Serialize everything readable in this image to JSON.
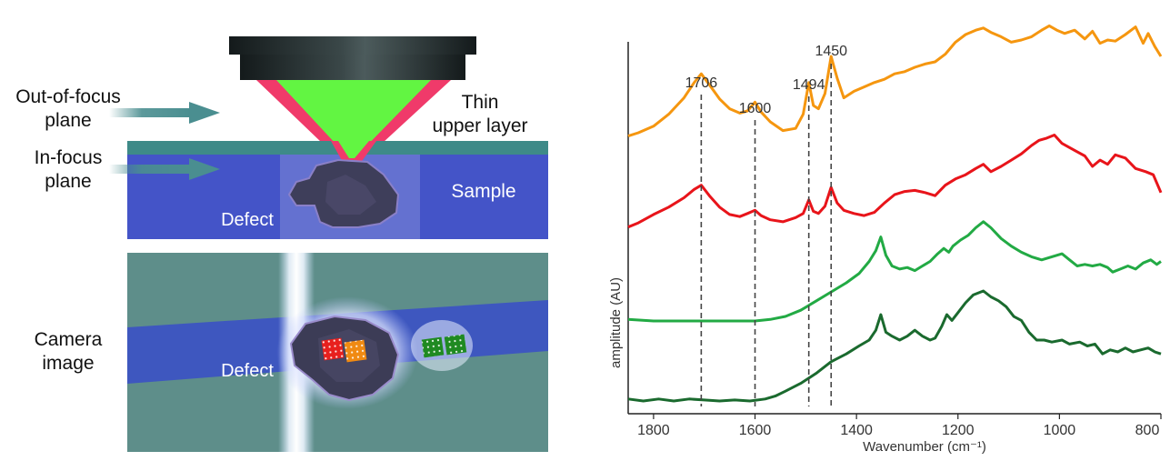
{
  "diagram": {
    "labels": {
      "out_of_focus_line1": "Out-of-focus",
      "out_of_focus_line2": "plane",
      "in_focus_line1": "In-focus",
      "in_focus_line2": "plane",
      "thin_layer_line1": "Thin",
      "thin_layer_line2": "upper layer",
      "sample": "Sample",
      "defect_top": "Defect",
      "camera_line1": "Camera",
      "camera_line2": "image",
      "defect_bottom": "Defect"
    },
    "colors": {
      "sample_blue": "#4454c8",
      "upper_layer_teal": "#3e8a88",
      "arrow_teal": "#4a8e90",
      "beam_green": "#62f542",
      "beam_red": "#f03a6a",
      "camera_bg": "#5e8e8a",
      "objective_dark": "#1e2526"
    },
    "markers": [
      {
        "name": "red-marker",
        "color": "#e8201e"
      },
      {
        "name": "orange-marker",
        "color": "#f08a12"
      },
      {
        "name": "green-marker-1",
        "color": "#1f8a22"
      },
      {
        "name": "green-marker-2",
        "color": "#1f8a22"
      }
    ]
  },
  "chart_data": {
    "type": "line",
    "title": "",
    "xlabel": "Wavenumber (cm⁻¹)",
    "ylabel": "amplitude (AU)",
    "xlim": [
      1850,
      800
    ],
    "x_reversed": true,
    "xticks": [
      1800,
      1600,
      1400,
      1200,
      1000,
      800
    ],
    "grid": false,
    "legend": "none",
    "peaks": [
      {
        "x": 1706,
        "label": "1706"
      },
      {
        "x": 1600,
        "label": "1600"
      },
      {
        "x": 1494,
        "label": "1494"
      },
      {
        "x": 1450,
        "label": "1450"
      }
    ],
    "series": [
      {
        "color": "#f5960f",
        "points": [
          [
            1850,
            0.27
          ],
          [
            1830,
            0.3
          ],
          [
            1800,
            0.36
          ],
          [
            1770,
            0.47
          ],
          [
            1740,
            0.62
          ],
          [
            1720,
            0.76
          ],
          [
            1706,
            0.84
          ],
          [
            1690,
            0.74
          ],
          [
            1670,
            0.61
          ],
          [
            1650,
            0.52
          ],
          [
            1630,
            0.48
          ],
          [
            1615,
            0.5
          ],
          [
            1600,
            0.58
          ],
          [
            1588,
            0.49
          ],
          [
            1570,
            0.4
          ],
          [
            1545,
            0.32
          ],
          [
            1520,
            0.34
          ],
          [
            1505,
            0.47
          ],
          [
            1494,
            0.76
          ],
          [
            1485,
            0.55
          ],
          [
            1475,
            0.52
          ],
          [
            1462,
            0.66
          ],
          [
            1450,
            1.0
          ],
          [
            1438,
            0.8
          ],
          [
            1425,
            0.62
          ],
          [
            1405,
            0.68
          ],
          [
            1385,
            0.72
          ],
          [
            1365,
            0.76
          ],
          [
            1345,
            0.79
          ],
          [
            1325,
            0.84
          ],
          [
            1305,
            0.86
          ],
          [
            1285,
            0.9
          ],
          [
            1265,
            0.93
          ],
          [
            1245,
            0.95
          ],
          [
            1225,
            1.02
          ],
          [
            1205,
            1.13
          ],
          [
            1185,
            1.2
          ],
          [
            1165,
            1.24
          ],
          [
            1150,
            1.26
          ],
          [
            1135,
            1.22
          ],
          [
            1115,
            1.18
          ],
          [
            1095,
            1.13
          ],
          [
            1075,
            1.15
          ],
          [
            1055,
            1.18
          ],
          [
            1035,
            1.24
          ],
          [
            1020,
            1.28
          ],
          [
            1005,
            1.24
          ],
          [
            990,
            1.21
          ],
          [
            970,
            1.24
          ],
          [
            950,
            1.16
          ],
          [
            935,
            1.23
          ],
          [
            920,
            1.12
          ],
          [
            905,
            1.15
          ],
          [
            890,
            1.14
          ],
          [
            870,
            1.2
          ],
          [
            850,
            1.27
          ],
          [
            835,
            1.12
          ],
          [
            825,
            1.21
          ],
          [
            812,
            1.09
          ],
          [
            800,
            1.0
          ]
        ]
      },
      {
        "color": "#e8141a",
        "points": [
          [
            1850,
            0.22
          ],
          [
            1830,
            0.26
          ],
          [
            1800,
            0.34
          ],
          [
            1770,
            0.41
          ],
          [
            1740,
            0.5
          ],
          [
            1720,
            0.58
          ],
          [
            1706,
            0.62
          ],
          [
            1690,
            0.52
          ],
          [
            1670,
            0.41
          ],
          [
            1650,
            0.34
          ],
          [
            1630,
            0.32
          ],
          [
            1615,
            0.35
          ],
          [
            1600,
            0.38
          ],
          [
            1588,
            0.33
          ],
          [
            1570,
            0.29
          ],
          [
            1545,
            0.27
          ],
          [
            1520,
            0.31
          ],
          [
            1505,
            0.35
          ],
          [
            1494,
            0.48
          ],
          [
            1485,
            0.37
          ],
          [
            1475,
            0.35
          ],
          [
            1462,
            0.42
          ],
          [
            1450,
            0.6
          ],
          [
            1438,
            0.45
          ],
          [
            1425,
            0.38
          ],
          [
            1405,
            0.35
          ],
          [
            1385,
            0.33
          ],
          [
            1365,
            0.36
          ],
          [
            1345,
            0.45
          ],
          [
            1325,
            0.53
          ],
          [
            1305,
            0.56
          ],
          [
            1285,
            0.57
          ],
          [
            1265,
            0.55
          ],
          [
            1245,
            0.52
          ],
          [
            1225,
            0.62
          ],
          [
            1205,
            0.68
          ],
          [
            1185,
            0.72
          ],
          [
            1165,
            0.78
          ],
          [
            1150,
            0.82
          ],
          [
            1135,
            0.75
          ],
          [
            1115,
            0.8
          ],
          [
            1095,
            0.86
          ],
          [
            1075,
            0.92
          ],
          [
            1055,
            1.0
          ],
          [
            1040,
            1.05
          ],
          [
            1025,
            1.07
          ],
          [
            1010,
            1.1
          ],
          [
            995,
            1.02
          ],
          [
            980,
            0.98
          ],
          [
            965,
            0.94
          ],
          [
            950,
            0.9
          ],
          [
            935,
            0.8
          ],
          [
            920,
            0.86
          ],
          [
            905,
            0.82
          ],
          [
            890,
            0.91
          ],
          [
            870,
            0.88
          ],
          [
            850,
            0.78
          ],
          [
            830,
            0.75
          ],
          [
            815,
            0.72
          ],
          [
            800,
            0.55
          ]
        ]
      },
      {
        "color": "#22aa44",
        "points": [
          [
            1850,
            0.02
          ],
          [
            1800,
            0.0
          ],
          [
            1750,
            0.0
          ],
          [
            1700,
            0.0
          ],
          [
            1650,
            0.0
          ],
          [
            1600,
            0.0
          ],
          [
            1570,
            0.02
          ],
          [
            1540,
            0.06
          ],
          [
            1510,
            0.14
          ],
          [
            1480,
            0.26
          ],
          [
            1450,
            0.38
          ],
          [
            1420,
            0.5
          ],
          [
            1395,
            0.62
          ],
          [
            1375,
            0.78
          ],
          [
            1362,
            0.92
          ],
          [
            1352,
            1.1
          ],
          [
            1342,
            0.86
          ],
          [
            1330,
            0.72
          ],
          [
            1315,
            0.68
          ],
          [
            1300,
            0.7
          ],
          [
            1285,
            0.66
          ],
          [
            1270,
            0.72
          ],
          [
            1255,
            0.78
          ],
          [
            1240,
            0.88
          ],
          [
            1228,
            0.95
          ],
          [
            1218,
            0.9
          ],
          [
            1210,
            0.98
          ],
          [
            1195,
            1.06
          ],
          [
            1180,
            1.12
          ],
          [
            1165,
            1.22
          ],
          [
            1150,
            1.3
          ],
          [
            1135,
            1.22
          ],
          [
            1115,
            1.08
          ],
          [
            1095,
            0.98
          ],
          [
            1075,
            0.9
          ],
          [
            1055,
            0.84
          ],
          [
            1035,
            0.8
          ],
          [
            1015,
            0.84
          ],
          [
            995,
            0.88
          ],
          [
            980,
            0.8
          ],
          [
            965,
            0.72
          ],
          [
            950,
            0.74
          ],
          [
            935,
            0.72
          ],
          [
            920,
            0.74
          ],
          [
            905,
            0.7
          ],
          [
            895,
            0.64
          ],
          [
            880,
            0.68
          ],
          [
            865,
            0.72
          ],
          [
            850,
            0.68
          ],
          [
            835,
            0.76
          ],
          [
            820,
            0.8
          ],
          [
            808,
            0.74
          ],
          [
            800,
            0.78
          ]
        ]
      },
      {
        "color": "#1a6a2e",
        "points": [
          [
            1850,
            0.02
          ],
          [
            1820,
            0.0
          ],
          [
            1790,
            0.02
          ],
          [
            1760,
            0.0
          ],
          [
            1730,
            0.02
          ],
          [
            1700,
            0.01
          ],
          [
            1670,
            0.0
          ],
          [
            1640,
            0.01
          ],
          [
            1610,
            0.0
          ],
          [
            1580,
            0.02
          ],
          [
            1560,
            0.05
          ],
          [
            1540,
            0.1
          ],
          [
            1510,
            0.18
          ],
          [
            1480,
            0.28
          ],
          [
            1450,
            0.4
          ],
          [
            1420,
            0.48
          ],
          [
            1395,
            0.56
          ],
          [
            1375,
            0.62
          ],
          [
            1362,
            0.72
          ],
          [
            1352,
            0.88
          ],
          [
            1342,
            0.7
          ],
          [
            1330,
            0.66
          ],
          [
            1315,
            0.62
          ],
          [
            1300,
            0.66
          ],
          [
            1285,
            0.72
          ],
          [
            1270,
            0.66
          ],
          [
            1255,
            0.62
          ],
          [
            1245,
            0.64
          ],
          [
            1232,
            0.76
          ],
          [
            1222,
            0.88
          ],
          [
            1212,
            0.82
          ],
          [
            1200,
            0.9
          ],
          [
            1185,
            1.0
          ],
          [
            1170,
            1.08
          ],
          [
            1150,
            1.12
          ],
          [
            1135,
            1.06
          ],
          [
            1120,
            1.02
          ],
          [
            1105,
            0.96
          ],
          [
            1090,
            0.86
          ],
          [
            1075,
            0.82
          ],
          [
            1060,
            0.7
          ],
          [
            1045,
            0.62
          ],
          [
            1030,
            0.62
          ],
          [
            1015,
            0.6
          ],
          [
            995,
            0.62
          ],
          [
            980,
            0.58
          ],
          [
            960,
            0.6
          ],
          [
            945,
            0.56
          ],
          [
            930,
            0.58
          ],
          [
            915,
            0.48
          ],
          [
            900,
            0.52
          ],
          [
            885,
            0.5
          ],
          [
            870,
            0.54
          ],
          [
            855,
            0.5
          ],
          [
            840,
            0.52
          ],
          [
            825,
            0.54
          ],
          [
            812,
            0.5
          ],
          [
            800,
            0.48
          ]
        ]
      }
    ]
  }
}
